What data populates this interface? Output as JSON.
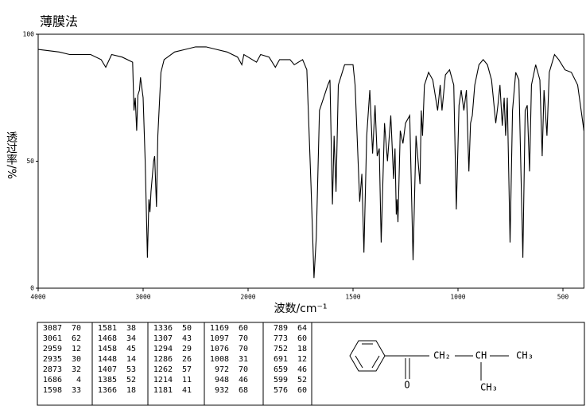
{
  "chart_data": {
    "type": "line",
    "title": "薄膜法",
    "y_label": "透过率/%",
    "x_label": "波数/cm⁻¹",
    "xlim": [
      4000,
      400
    ],
    "xticks": [
      4000,
      3000,
      2000,
      1500,
      1000,
      500
    ],
    "ylim": [
      0,
      100
    ],
    "yticks": [
      0,
      50,
      100
    ],
    "color": "#000000",
    "x": [
      4000,
      3800,
      3700,
      3500,
      3400,
      3356,
      3300,
      3200,
      3100,
      3087,
      3075,
      3061,
      3050,
      3035,
      3025,
      3000,
      2980,
      2959,
      2945,
      2935,
      2925,
      2900,
      2890,
      2873,
      2860,
      2830,
      2800,
      2700,
      2600,
      2500,
      2400,
      2300,
      2200,
      2100,
      2060,
      2040,
      2000,
      1960,
      1940,
      1900,
      1870,
      1850,
      1800,
      1780,
      1740,
      1720,
      1700,
      1686,
      1675,
      1660,
      1620,
      1610,
      1598,
      1590,
      1581,
      1570,
      1540,
      1500,
      1490,
      1468,
      1458,
      1448,
      1435,
      1420,
      1407,
      1395,
      1385,
      1375,
      1366,
      1350,
      1336,
      1320,
      1307,
      1300,
      1294,
      1290,
      1286,
      1275,
      1262,
      1250,
      1230,
      1214,
      1200,
      1181,
      1175,
      1169,
      1160,
      1140,
      1120,
      1097,
      1085,
      1076,
      1060,
      1040,
      1020,
      1008,
      995,
      985,
      972,
      960,
      948,
      940,
      932,
      920,
      900,
      880,
      860,
      840,
      820,
      810,
      800,
      789,
      780,
      773,
      765,
      752,
      740,
      725,
      710,
      691,
      680,
      670,
      659,
      650,
      630,
      610,
      599,
      590,
      576,
      565,
      540,
      520,
      490,
      460,
      430,
      400
    ],
    "values": [
      94,
      93,
      92,
      92,
      90,
      87,
      92,
      91,
      89,
      70,
      75,
      62,
      76,
      78,
      83,
      75,
      50,
      12,
      35,
      30,
      38,
      50,
      52,
      32,
      60,
      85,
      90,
      93,
      94,
      95,
      95,
      94,
      93,
      91,
      88,
      92,
      91,
      89,
      92,
      91,
      87,
      90,
      90,
      88,
      90,
      86,
      40,
      4,
      20,
      70,
      80,
      82,
      33,
      60,
      38,
      80,
      88,
      88,
      80,
      34,
      45,
      14,
      60,
      78,
      53,
      72,
      52,
      55,
      18,
      65,
      50,
      68,
      43,
      55,
      29,
      35,
      26,
      62,
      57,
      65,
      68,
      11,
      60,
      41,
      70,
      60,
      80,
      85,
      82,
      70,
      80,
      70,
      84,
      86,
      80,
      31,
      72,
      78,
      70,
      78,
      46,
      65,
      68,
      80,
      88,
      90,
      88,
      82,
      65,
      72,
      80,
      64,
      75,
      60,
      75,
      18,
      70,
      85,
      82,
      12,
      70,
      72,
      46,
      80,
      88,
      82,
      52,
      78,
      60,
      85,
      92,
      90,
      86,
      85,
      80,
      62
    ]
  },
  "peak_table": [
    [
      [
        3087,
        70
      ],
      [
        3061,
        62
      ],
      [
        2959,
        12
      ],
      [
        2935,
        30
      ],
      [
        2873,
        32
      ],
      [
        1686,
        4
      ],
      [
        1598,
        33
      ]
    ],
    [
      [
        1581,
        38
      ],
      [
        1468,
        34
      ],
      [
        1458,
        45
      ],
      [
        1448,
        14
      ],
      [
        1407,
        53
      ],
      [
        1385,
        52
      ],
      [
        1366,
        18
      ]
    ],
    [
      [
        1336,
        50
      ],
      [
        1307,
        43
      ],
      [
        1294,
        29
      ],
      [
        1286,
        26
      ],
      [
        1262,
        57
      ],
      [
        1214,
        11
      ],
      [
        1181,
        41
      ]
    ],
    [
      [
        1169,
        60
      ],
      [
        1097,
        70
      ],
      [
        1076,
        70
      ],
      [
        1008,
        31
      ],
      [
        972,
        70
      ],
      [
        948,
        46
      ],
      [
        932,
        68
      ]
    ],
    [
      [
        789,
        64
      ],
      [
        773,
        60
      ],
      [
        752,
        18
      ],
      [
        691,
        12
      ],
      [
        659,
        46
      ],
      [
        599,
        52
      ],
      [
        576,
        60
      ]
    ]
  ],
  "structure": {
    "atoms": [
      "O",
      "CH₂",
      "CH",
      "CH₃",
      "CH₃"
    ]
  }
}
